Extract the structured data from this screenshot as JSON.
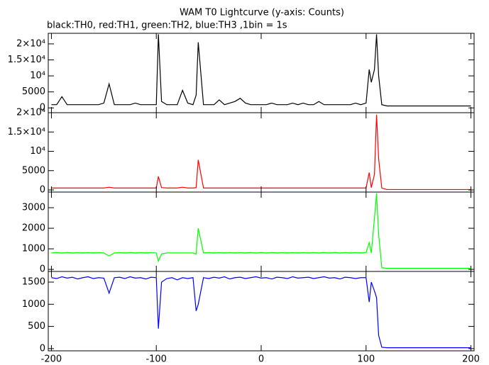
{
  "chart_data": {
    "type": "line",
    "title": "WAM T0 Lightcurve (y-axis: Counts)",
    "subtitle": "black:TH0, red:TH1, green:TH2, blue:TH3 ,1bin = 1s",
    "x": [
      -200,
      -195,
      -190,
      -185,
      -180,
      -175,
      -170,
      -165,
      -160,
      -155,
      -150,
      -145,
      -140,
      -135,
      -130,
      -125,
      -120,
      -115,
      -110,
      -105,
      -100,
      -98,
      -95,
      -90,
      -85,
      -80,
      -75,
      -70,
      -65,
      -62,
      -60,
      -55,
      -50,
      -45,
      -40,
      -35,
      -30,
      -25,
      -20,
      -15,
      -10,
      -5,
      0,
      5,
      10,
      15,
      20,
      25,
      30,
      35,
      40,
      45,
      50,
      55,
      60,
      65,
      70,
      75,
      80,
      85,
      90,
      95,
      100,
      103,
      105,
      108,
      110,
      112,
      115,
      120,
      130,
      140,
      150,
      160,
      170,
      180,
      190,
      200
    ],
    "xlim": [
      -203,
      203
    ],
    "xticks": [
      -200,
      -100,
      0,
      100,
      200
    ],
    "panels": [
      {
        "color": "#000000",
        "ylim": [
          -1500,
          23300
        ],
        "yticks": [
          0,
          5000,
          {
            "value": 10000,
            "label": "10⁴"
          },
          {
            "value": 15000,
            "label": "1.5×10⁴"
          },
          {
            "value": 20000,
            "label": "2×10⁴"
          }
        ],
        "values": [
          1000,
          1000,
          3500,
          1000,
          1000,
          1000,
          1000,
          1000,
          1000,
          1000,
          1500,
          7500,
          1000,
          1000,
          1000,
          1000,
          1500,
          1000,
          1000,
          1000,
          1000,
          23000,
          2000,
          1000,
          1000,
          1000,
          5500,
          1500,
          1000,
          4000,
          20500,
          1000,
          1000,
          1000,
          2500,
          1000,
          1500,
          2000,
          3000,
          1500,
          1000,
          1000,
          1000,
          1000,
          1500,
          1000,
          1000,
          1000,
          1500,
          1000,
          1500,
          1000,
          1000,
          2000,
          1000,
          1000,
          1000,
          1000,
          1000,
          1000,
          1500,
          1000,
          1500,
          12000,
          8000,
          12000,
          23000,
          10000,
          1000,
          600,
          600,
          600,
          600,
          600,
          600,
          600,
          600,
          600
        ]
      },
      {
        "color": "#ff0000",
        "ylim": [
          -550,
          20000
        ],
        "yticks": [
          0,
          5000,
          {
            "value": 10000,
            "label": "10⁴"
          },
          {
            "value": 15000,
            "label": "1.5×10⁴"
          },
          {
            "value": 20000,
            "label": "2×10⁴"
          }
        ],
        "values": [
          500,
          500,
          500,
          500,
          500,
          500,
          500,
          500,
          500,
          500,
          500,
          700,
          500,
          500,
          500,
          500,
          500,
          500,
          500,
          500,
          500,
          3500,
          600,
          500,
          500,
          500,
          700,
          500,
          500,
          600,
          7800,
          500,
          500,
          500,
          500,
          500,
          500,
          500,
          500,
          500,
          500,
          500,
          500,
          500,
          500,
          500,
          500,
          500,
          500,
          500,
          500,
          500,
          500,
          500,
          500,
          500,
          500,
          500,
          500,
          500,
          500,
          500,
          500,
          4500,
          600,
          4000,
          19500,
          8000,
          500,
          100,
          100,
          100,
          100,
          100,
          100,
          100,
          100,
          100
        ]
      },
      {
        "color": "#00ff00",
        "ylim": [
          -100,
          3760
        ],
        "yticks": [
          0,
          1000,
          2000,
          3000
        ],
        "values": [
          800,
          820,
          800,
          820,
          800,
          820,
          800,
          820,
          800,
          820,
          800,
          650,
          800,
          820,
          800,
          820,
          800,
          820,
          800,
          820,
          800,
          400,
          750,
          800,
          800,
          800,
          800,
          800,
          800,
          750,
          2000,
          800,
          820,
          800,
          820,
          800,
          820,
          800,
          820,
          800,
          820,
          800,
          820,
          800,
          820,
          800,
          820,
          800,
          820,
          800,
          820,
          800,
          820,
          800,
          820,
          800,
          820,
          800,
          820,
          800,
          820,
          800,
          820,
          1300,
          800,
          2500,
          3700,
          1700,
          80,
          50,
          50,
          50,
          50,
          50,
          50,
          50,
          50,
          50
        ]
      },
      {
        "color": "#0000ff",
        "ylim": [
          -50,
          1740
        ],
        "yticks": [
          0,
          500,
          1000,
          1500
        ],
        "values": [
          1600,
          1580,
          1620,
          1590,
          1610,
          1570,
          1600,
          1620,
          1580,
          1600,
          1590,
          1250,
          1600,
          1610,
          1580,
          1620,
          1590,
          1600,
          1570,
          1610,
          1600,
          450,
          1500,
          1580,
          1600,
          1550,
          1600,
          1580,
          1600,
          850,
          1000,
          1600,
          1580,
          1610,
          1590,
          1620,
          1570,
          1600,
          1610,
          1580,
          1600,
          1620,
          1590,
          1600,
          1570,
          1610,
          1600,
          1580,
          1620,
          1590,
          1600,
          1610,
          1580,
          1600,
          1620,
          1590,
          1600,
          1570,
          1610,
          1600,
          1580,
          1600,
          1600,
          1050,
          1500,
          1300,
          1150,
          300,
          30,
          20,
          20,
          20,
          20,
          20,
          20,
          20,
          20,
          20
        ]
      }
    ]
  }
}
